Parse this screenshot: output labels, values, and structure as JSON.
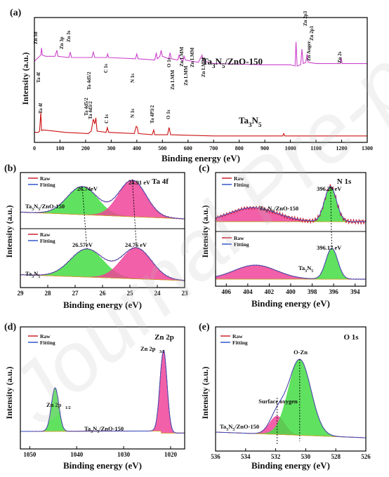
{
  "watermark": "Journal Pre-proofs",
  "chart_data": [
    {
      "id": "a",
      "type": "line",
      "panel_label": "(a)",
      "xlabel": "Binding energy (eV)",
      "ylabel": "Intensity (a.u.)",
      "xlim": [
        0,
        1300
      ],
      "xticks": [
        0,
        100,
        200,
        300,
        400,
        500,
        600,
        700,
        800,
        900,
        1000,
        1100,
        1200,
        1300
      ],
      "series": [
        {
          "name": "Ta3N5/ZnO-150",
          "color": "#cc44cc",
          "points": [
            [
              0,
              70
            ],
            [
              15,
              64
            ],
            [
              25,
              60
            ],
            [
              28,
              48
            ],
            [
              31,
              60
            ],
            [
              45,
              62
            ],
            [
              80,
              62
            ],
            [
              88,
              52
            ],
            [
              92,
              62
            ],
            [
              135,
              64
            ],
            [
              140,
              55
            ],
            [
              145,
              64
            ],
            [
              225,
              64
            ],
            [
              230,
              55
            ],
            [
              236,
              64
            ],
            [
              282,
              64
            ],
            [
              286,
              58
            ],
            [
              290,
              64
            ],
            [
              395,
              66
            ],
            [
              400,
              58
            ],
            [
              405,
              66
            ],
            [
              470,
              68
            ],
            [
              476,
              56
            ],
            [
              480,
              66
            ],
            [
              490,
              62
            ],
            [
              495,
              52
            ],
            [
              500,
              62
            ],
            [
              525,
              66
            ],
            [
              530,
              56
            ],
            [
              535,
              66
            ],
            [
              560,
              68
            ],
            [
              565,
              60
            ],
            [
              570,
              66
            ],
            [
              580,
              70
            ],
            [
              585,
              62
            ],
            [
              590,
              68
            ],
            [
              640,
              72
            ],
            [
              655,
              60
            ],
            [
              660,
              70
            ],
            [
              700,
              74
            ],
            [
              900,
              76
            ],
            [
              1000,
              76
            ],
            [
              1018,
              78
            ],
            [
              1022,
              38
            ],
            [
              1026,
              78
            ],
            [
              1040,
              76
            ],
            [
              1045,
              50
            ],
            [
              1050,
              74
            ],
            [
              1060,
              72
            ],
            [
              1065,
              58
            ],
            [
              1070,
              72
            ],
            [
              1100,
              74
            ],
            [
              1195,
              74
            ],
            [
              1198,
              64
            ],
            [
              1202,
              74
            ],
            [
              1300,
              74
            ]
          ]
        },
        {
          "name": "Ta3N5",
          "color": "#cc1111",
          "points": [
            [
              0,
              188
            ],
            [
              15,
              188
            ],
            [
              20,
              186
            ],
            [
              25,
              155
            ],
            [
              28,
              185
            ],
            [
              35,
              184
            ],
            [
              120,
              188
            ],
            [
              210,
              190
            ],
            [
              222,
              186
            ],
            [
              230,
              166
            ],
            [
              236,
              174
            ],
            [
              240,
              164
            ],
            [
              245,
              186
            ],
            [
              280,
              188
            ],
            [
              285,
              180
            ],
            [
              290,
              188
            ],
            [
              390,
              190
            ],
            [
              398,
              178
            ],
            [
              402,
              180
            ],
            [
              406,
              190
            ],
            [
              460,
              192
            ],
            [
              466,
              184
            ],
            [
              470,
              192
            ],
            [
              520,
              192
            ],
            [
              526,
              180
            ],
            [
              532,
              192
            ],
            [
              700,
              194
            ],
            [
              970,
              194
            ],
            [
              974,
              190
            ],
            [
              978,
              194
            ],
            [
              1300,
              194
            ]
          ]
        }
      ],
      "labels": [
        {
          "text": "Zn 3d"
        },
        {
          "text": "Ta 4f"
        },
        {
          "text": "Zn 3p"
        },
        {
          "text": "Zn 3s"
        },
        {
          "text": "Ta 4d5/2"
        },
        {
          "text": "C 1s"
        },
        {
          "text": "N 1s"
        },
        {
          "text": "Zn LMM"
        },
        {
          "text": "Zn LMM"
        },
        {
          "text": "O 1s"
        },
        {
          "text": "Zn LMM"
        },
        {
          "text": "Zn LMM"
        },
        {
          "text": "Zn LMM"
        },
        {
          "text": "Zn 2p3"
        },
        {
          "text": "Zn 2p1"
        },
        {
          "text": "Zn Auger"
        },
        {
          "text": "Zn 2s"
        },
        {
          "text": "Ta 4f"
        },
        {
          "text": "Ta 4d5/2"
        },
        {
          "text": "Ta 4d3/2"
        },
        {
          "text": "C 1s"
        },
        {
          "text": "N 1s"
        },
        {
          "text": "Ta 4P3/2"
        },
        {
          "text": "O 1s"
        }
      ],
      "series_labels": [
        "Ta3N5/ZnO-150",
        "Ta3N5"
      ]
    },
    {
      "id": "b",
      "type": "line",
      "panel_label": "(b)",
      "title": "Ta 4f",
      "xlabel": "Binding energy (eV)",
      "ylabel": "Intensity (a.u.)",
      "xlim": [
        29,
        23
      ],
      "xticks": [
        29,
        28,
        27,
        26,
        25,
        24,
        23
      ],
      "legend": [
        "Raw",
        "Fitting"
      ],
      "upper": {
        "sample": "Ta3N5/ZnO-150",
        "peaks": [
          26.74,
          24.91
        ],
        "peak_labels": [
          "26.74eV",
          "24.91 eV"
        ]
      },
      "lower": {
        "sample": "Ta3N5",
        "peaks": [
          26.57,
          24.76
        ],
        "peak_labels": [
          "26.57eV",
          "24.76 eV"
        ]
      }
    },
    {
      "id": "c",
      "type": "line",
      "panel_label": "(c)",
      "title": "N 1s",
      "xlabel": "Binding energy (eV)",
      "ylabel": "Intensity (a.u.)",
      "xlim": [
        407,
        393
      ],
      "xticks": [
        406,
        404,
        402,
        400,
        398,
        396,
        394
      ],
      "legend": [
        "Raw",
        "Fitting"
      ],
      "upper": {
        "sample": "Ta3N5/ZnO-150",
        "peaks": [
          403.5,
          396.29
        ],
        "peak_labels": [
          "396.29 eV"
        ]
      },
      "lower": {
        "sample": "Ta3N5",
        "peaks": [
          403.3,
          396.17
        ],
        "peak_labels": [
          "396.17 eV"
        ]
      }
    },
    {
      "id": "d",
      "type": "line",
      "panel_label": "(d)",
      "title": "Zn 2p",
      "xlabel": "Binding energy (eV)",
      "ylabel": "Intensity (a.u.)",
      "xlim": [
        1052,
        1017
      ],
      "xticks": [
        1050,
        1040,
        1030,
        1020
      ],
      "legend": [
        "Raw",
        "Fitting"
      ],
      "sample": "Ta3N5/ZnO-150",
      "peaks": [
        1044.6,
        1021.5
      ],
      "peak_labels": [
        "Zn 2p1/2",
        "Zn 2p3/2"
      ]
    },
    {
      "id": "e",
      "type": "line",
      "panel_label": "(e)",
      "title": "O 1s",
      "xlabel": "Binding energy (eV)",
      "ylabel": "Intensity (a.u.)",
      "xlim": [
        536,
        526
      ],
      "xticks": [
        536,
        534,
        532,
        530,
        528,
        526
      ],
      "legend": [
        "Raw",
        "Fitting"
      ],
      "sample": "Ta3N5/ZnO-150",
      "peaks": [
        531.9,
        530.4
      ],
      "peak_labels": [
        "Surface oxygen",
        "O-Zn"
      ]
    }
  ]
}
